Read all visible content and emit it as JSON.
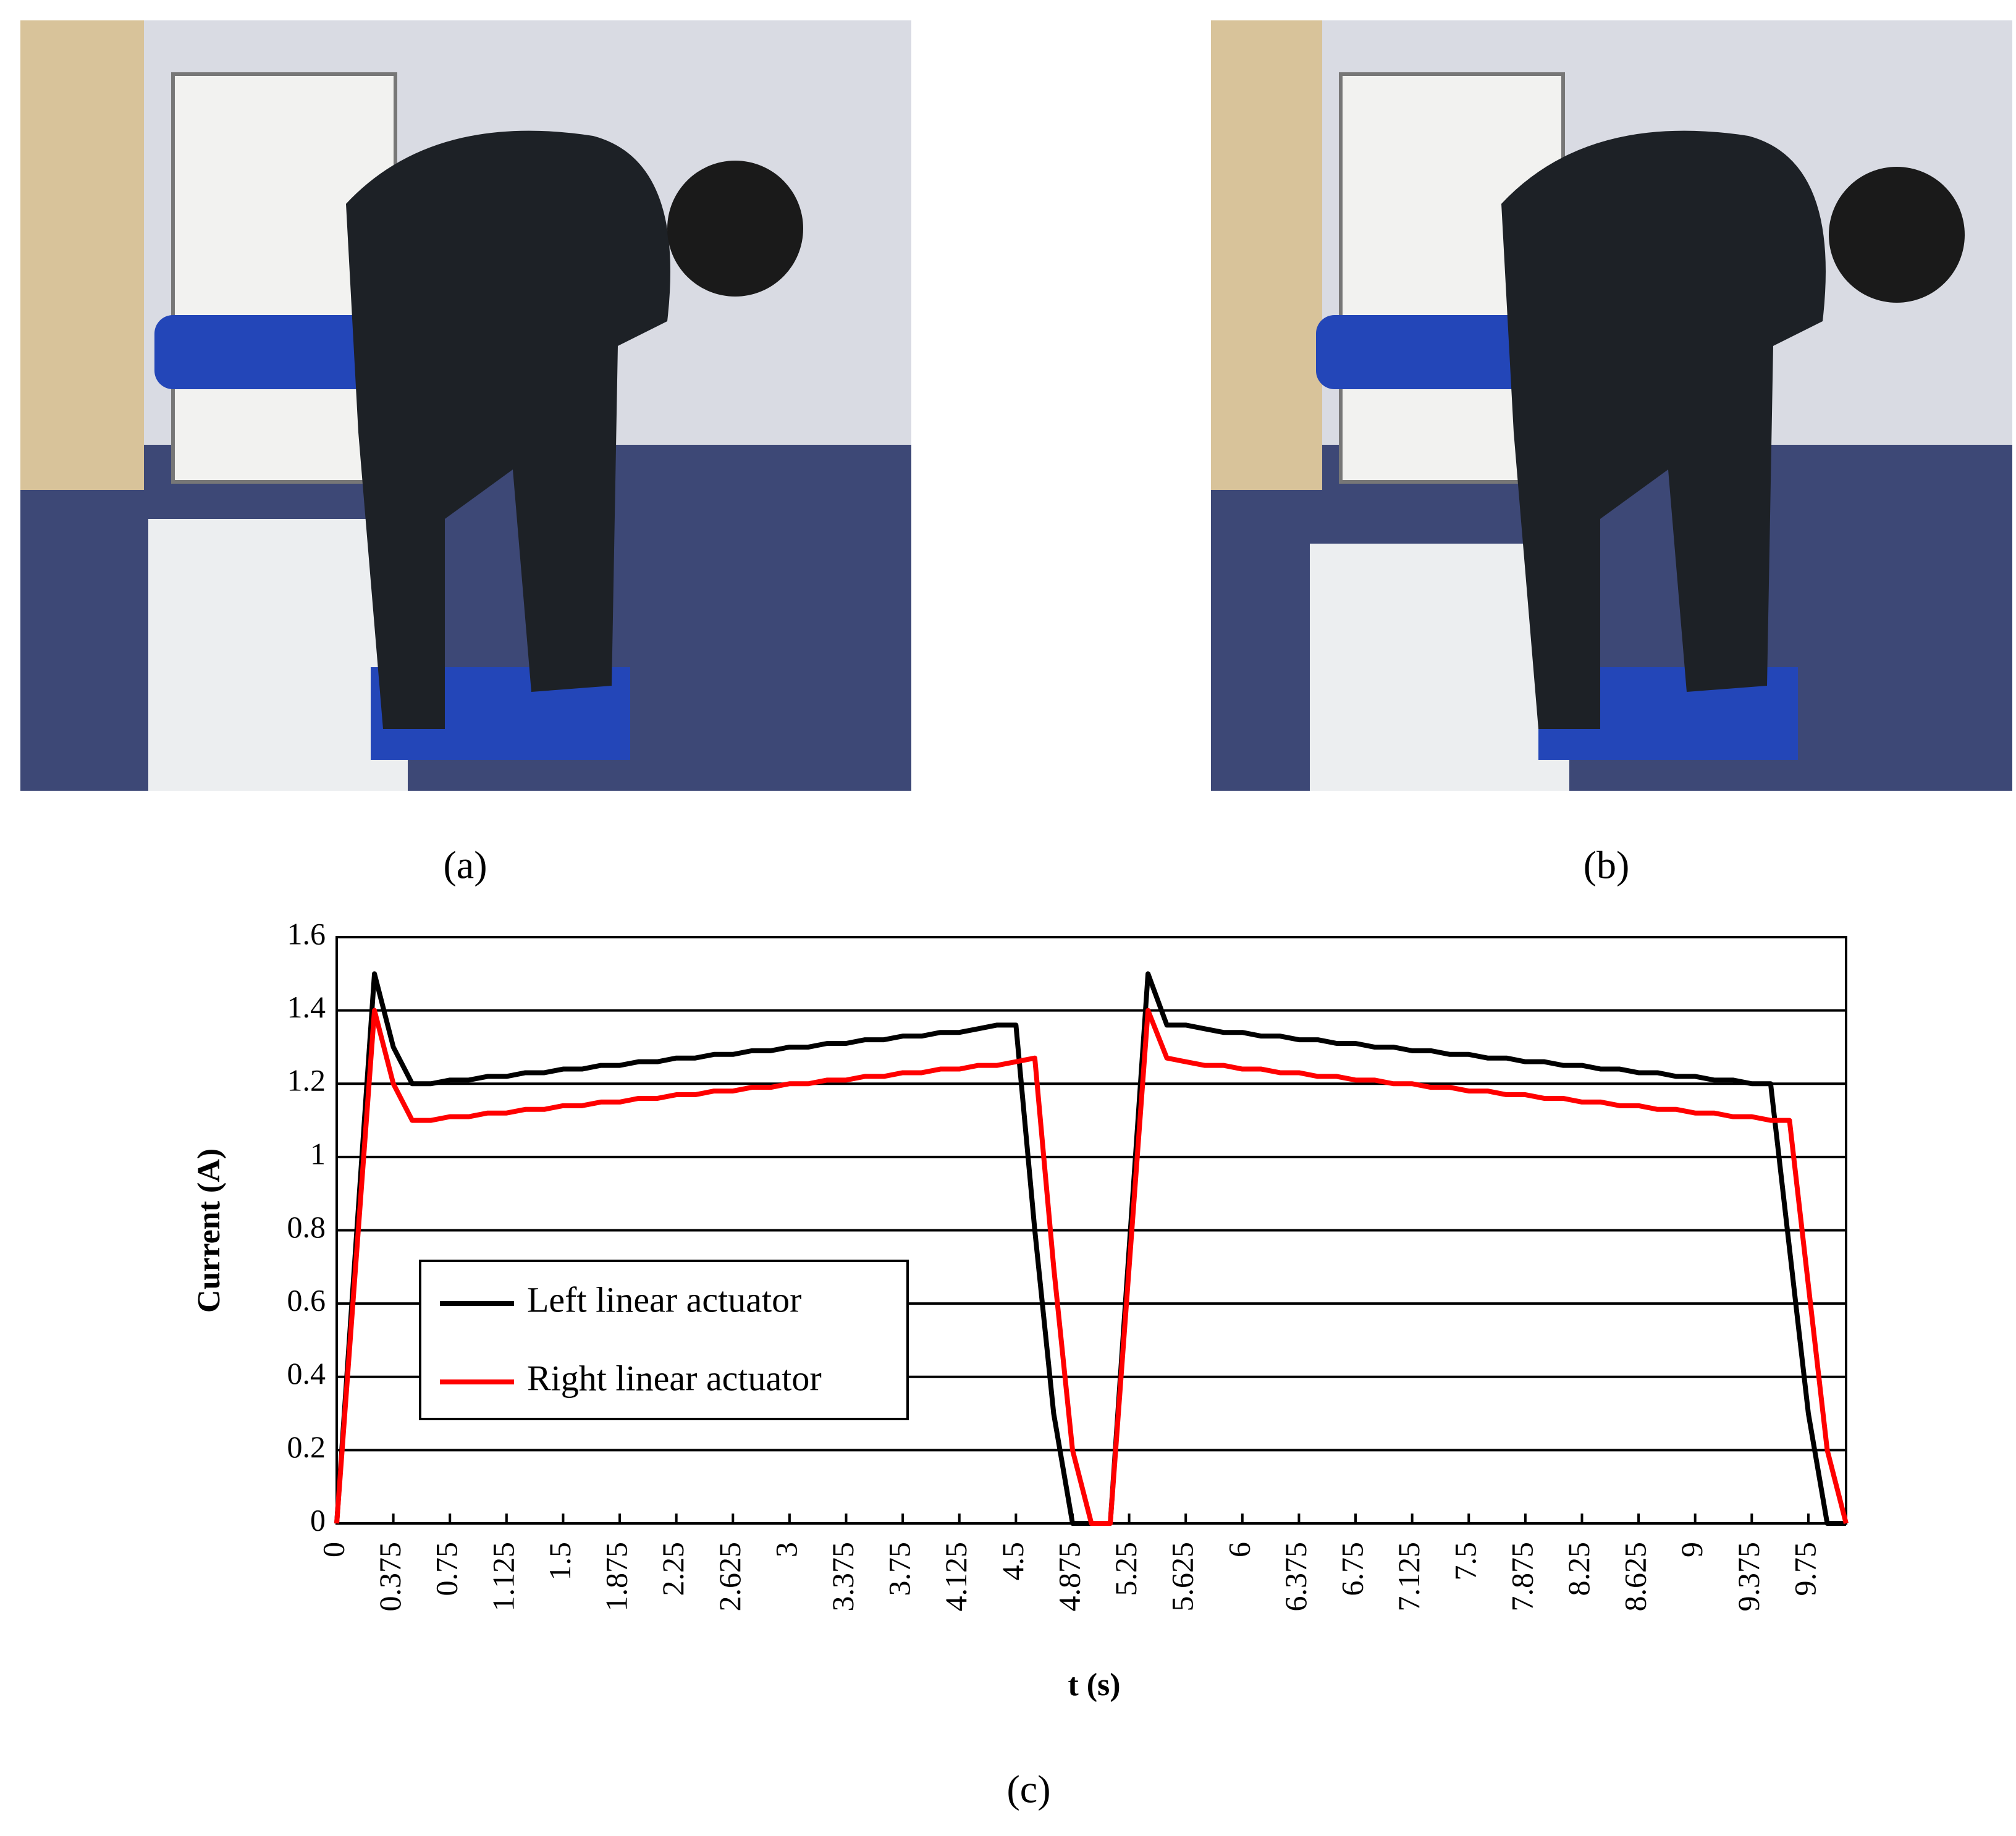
{
  "captions": [
    "(a)",
    "(b)",
    "(c)"
  ],
  "chart_data": {
    "type": "line",
    "x_label": "t (s)",
    "y_label": "Current (A)",
    "x": [
      0,
      0.125,
      0.25,
      0.375,
      0.5,
      0.625,
      0.75,
      0.875,
      1,
      1.125,
      1.25,
      1.375,
      1.5,
      1.625,
      1.75,
      1.875,
      2,
      2.125,
      2.25,
      2.375,
      2.5,
      2.625,
      2.75,
      2.875,
      3,
      3.125,
      3.25,
      3.375,
      3.5,
      3.625,
      3.75,
      3.875,
      4,
      4.125,
      4.25,
      4.375,
      4.5,
      4.625,
      4.75,
      4.875,
      5,
      5.125,
      5.25,
      5.375,
      5.5,
      5.625,
      5.75,
      5.875,
      6,
      6.125,
      6.25,
      6.375,
      6.5,
      6.625,
      6.75,
      6.875,
      7,
      7.125,
      7.25,
      7.375,
      7.5,
      7.625,
      7.75,
      7.875,
      8,
      8.125,
      8.25,
      8.375,
      8.5,
      8.625,
      8.75,
      8.875,
      9,
      9.125,
      9.25,
      9.375,
      9.5,
      9.625,
      9.75,
      9.875,
      10
    ],
    "series": [
      {
        "name": "Left linear actuator",
        "color": "#000000",
        "values": [
          0,
          0.75,
          1.5,
          1.3,
          1.2,
          1.2,
          1.21,
          1.21,
          1.22,
          1.22,
          1.23,
          1.23,
          1.24,
          1.24,
          1.25,
          1.25,
          1.26,
          1.26,
          1.27,
          1.27,
          1.28,
          1.28,
          1.29,
          1.29,
          1.3,
          1.3,
          1.31,
          1.31,
          1.32,
          1.32,
          1.33,
          1.33,
          1.34,
          1.34,
          1.35,
          1.36,
          1.36,
          0.8,
          0.3,
          0,
          0,
          0,
          0.75,
          1.5,
          1.36,
          1.36,
          1.35,
          1.34,
          1.34,
          1.33,
          1.33,
          1.32,
          1.32,
          1.31,
          1.31,
          1.3,
          1.3,
          1.29,
          1.29,
          1.28,
          1.28,
          1.27,
          1.27,
          1.26,
          1.26,
          1.25,
          1.25,
          1.24,
          1.24,
          1.23,
          1.23,
          1.22,
          1.22,
          1.21,
          1.21,
          1.2,
          1.2,
          0.75,
          0.3,
          0,
          0
        ]
      },
      {
        "name": "Right linear actuator",
        "color": "#ff0000",
        "values": [
          0,
          0.7,
          1.4,
          1.2,
          1.1,
          1.1,
          1.11,
          1.11,
          1.12,
          1.12,
          1.13,
          1.13,
          1.14,
          1.14,
          1.15,
          1.15,
          1.16,
          1.16,
          1.17,
          1.17,
          1.18,
          1.18,
          1.19,
          1.19,
          1.2,
          1.2,
          1.21,
          1.21,
          1.22,
          1.22,
          1.23,
          1.23,
          1.24,
          1.24,
          1.25,
          1.25,
          1.26,
          1.27,
          0.7,
          0.2,
          0,
          0,
          0.7,
          1.4,
          1.27,
          1.26,
          1.25,
          1.25,
          1.24,
          1.24,
          1.23,
          1.23,
          1.22,
          1.22,
          1.21,
          1.21,
          1.2,
          1.2,
          1.19,
          1.19,
          1.18,
          1.18,
          1.17,
          1.17,
          1.16,
          1.16,
          1.15,
          1.15,
          1.14,
          1.14,
          1.13,
          1.13,
          1.12,
          1.12,
          1.11,
          1.11,
          1.1,
          1.1,
          0.65,
          0.2,
          0
        ]
      }
    ],
    "xlim": [
      0,
      10
    ],
    "xticks": [
      0,
      0.375,
      0.75,
      1.125,
      1.5,
      1.875,
      2.25,
      2.625,
      3,
      3.375,
      3.75,
      4.125,
      4.5,
      4.875,
      5.25,
      5.625,
      6,
      6.375,
      6.75,
      7.125,
      7.5,
      7.875,
      8.25,
      8.625,
      9,
      9.375,
      9.75
    ],
    "ylim": [
      0,
      1.6
    ],
    "yticks": [
      0,
      0.2,
      0.4,
      0.6,
      0.8,
      1,
      1.2,
      1.4,
      1.6
    ],
    "grid": true
  }
}
